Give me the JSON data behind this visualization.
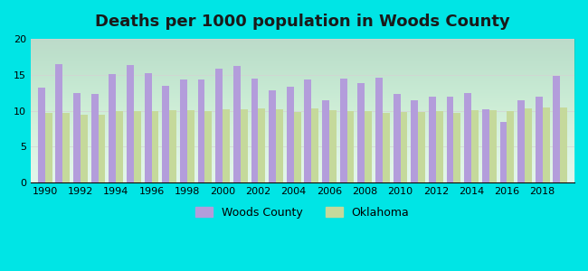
{
  "title": "Deaths per 1000 population in Woods County",
  "years": [
    1990,
    1991,
    1992,
    1993,
    1994,
    1995,
    1996,
    1997,
    1998,
    1999,
    2000,
    2001,
    2002,
    2003,
    2004,
    2005,
    2006,
    2007,
    2008,
    2009,
    2010,
    2011,
    2012,
    2013,
    2014,
    2015,
    2016,
    2017,
    2018,
    2019
  ],
  "woods_county": [
    13.2,
    16.5,
    12.4,
    12.3,
    15.1,
    16.3,
    15.2,
    13.5,
    14.4,
    14.4,
    15.9,
    16.2,
    14.5,
    12.8,
    13.4,
    14.4,
    11.4,
    14.5,
    13.9,
    14.6,
    12.3,
    11.4,
    11.9,
    11.9,
    12.4,
    10.2,
    8.4,
    11.5,
    11.9,
    14.9
  ],
  "oklahoma": [
    9.7,
    9.7,
    9.4,
    9.4,
    9.9,
    9.9,
    9.9,
    10.1,
    10.1,
    10.0,
    10.2,
    10.2,
    10.3,
    10.2,
    9.8,
    10.3,
    10.1,
    10.0,
    10.0,
    9.7,
    9.8,
    9.8,
    9.9,
    9.7,
    10.1,
    10.1,
    10.0,
    10.3,
    10.5,
    10.4
  ],
  "woods_color": "#b39ddb",
  "oklahoma_color": "#c5d99b",
  "background_color": "#00e5e5",
  "plot_bg_top": "#e8f5e9",
  "plot_bg_bottom": "#ffffff",
  "ylim": [
    0,
    20
  ],
  "yticks": [
    0,
    5,
    10,
    15,
    20
  ],
  "bar_width": 0.4,
  "title_fontsize": 13,
  "legend_labels": [
    "Woods County",
    "Oklahoma"
  ]
}
